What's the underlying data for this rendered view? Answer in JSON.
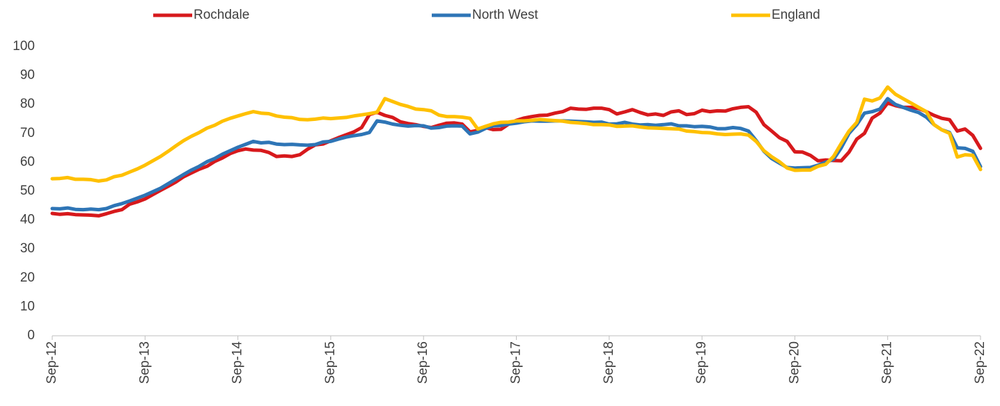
{
  "chart_data": {
    "type": "line",
    "categories": [
      "Sep-12",
      null,
      null,
      null,
      null,
      null,
      null,
      null,
      null,
      null,
      null,
      null,
      "Sep-13",
      null,
      null,
      null,
      null,
      null,
      null,
      null,
      null,
      null,
      null,
      null,
      "Sep-14",
      null,
      null,
      null,
      null,
      null,
      null,
      null,
      null,
      null,
      null,
      null,
      "Sep-15",
      null,
      null,
      null,
      null,
      null,
      null,
      null,
      null,
      null,
      null,
      null,
      "Sep-16",
      null,
      null,
      null,
      null,
      null,
      null,
      null,
      null,
      null,
      null,
      null,
      "Sep-17",
      null,
      null,
      null,
      null,
      null,
      null,
      null,
      null,
      null,
      null,
      null,
      "Sep-18",
      null,
      null,
      null,
      null,
      null,
      null,
      null,
      null,
      null,
      null,
      null,
      "Sep-19",
      null,
      null,
      null,
      null,
      null,
      null,
      null,
      null,
      null,
      null,
      null,
      "Sep-20",
      null,
      null,
      null,
      null,
      null,
      null,
      null,
      null,
      null,
      null,
      null,
      "Sep-21",
      null,
      null,
      null,
      null,
      null,
      null,
      null,
      null,
      null,
      null,
      null,
      "Sep-22"
    ],
    "series": [
      {
        "name": "Rochdale",
        "color": "#d7191c",
        "values": [
          42.3,
          42,
          42.2,
          41.9,
          41.8,
          41.7,
          41.5,
          42.2,
          43,
          43.6,
          45.5,
          46.3,
          47.3,
          48.8,
          50.3,
          51.7,
          53.2,
          55,
          56.3,
          57.6,
          58.6,
          60.3,
          61.5,
          63,
          64,
          64.6,
          64.2,
          64.1,
          63.4,
          62,
          62.2,
          62,
          62.6,
          64.5,
          66,
          66.3,
          67.4,
          68.5,
          69.5,
          70.5,
          72,
          76.5,
          77.3,
          76.2,
          75.5,
          74,
          73.4,
          73,
          72.4,
          72,
          72.8,
          73.5,
          73.6,
          73.2,
          70.5,
          71,
          72,
          71.3,
          71.4,
          73.2,
          74.5,
          75.3,
          75.8,
          76.2,
          76.3,
          77,
          77.5,
          78.7,
          78.4,
          78.3,
          78.7,
          78.7,
          78.2,
          76.7,
          77.4,
          78.2,
          77.2,
          76.4,
          76.7,
          76.2,
          77.4,
          77.8,
          76.5,
          76.8,
          78,
          77.5,
          77.8,
          77.7,
          78.5,
          79,
          79.2,
          77.3,
          73,
          70.8,
          68.5,
          67.2,
          63.6,
          63.5,
          62.4,
          60.5,
          60.8,
          60.6,
          60.5,
          63.5,
          68,
          70,
          75.3,
          77,
          80.5,
          79.6,
          79,
          79,
          78.6,
          77.5,
          76.2,
          75.2,
          74.7,
          70.8,
          71.5,
          69.3,
          64.8
        ]
      },
      {
        "name": "North West",
        "color": "#2e75b6",
        "values": [
          44,
          43.9,
          44.2,
          43.7,
          43.6,
          43.8,
          43.6,
          44,
          45,
          45.7,
          46.6,
          47.6,
          48.6,
          49.8,
          51,
          52.6,
          54.2,
          55.8,
          57.3,
          58.6,
          60.2,
          61.3,
          62.8,
          64,
          65.2,
          66.2,
          67.2,
          66.7,
          66.9,
          66.3,
          66.1,
          66.2,
          66,
          65.9,
          66.1,
          67,
          67.2,
          68,
          68.7,
          69.2,
          69.6,
          70.3,
          74.3,
          73.9,
          73.2,
          72.8,
          72.5,
          72.7,
          72.6,
          71.8,
          72,
          72.5,
          72.6,
          72.5,
          69.8,
          70.4,
          71.7,
          72.6,
          72.7,
          73.2,
          73.5,
          74,
          74.3,
          74.2,
          74.2,
          74.3,
          74.3,
          74.2,
          74.1,
          74,
          73.8,
          73.9,
          73.2,
          73.3,
          73.8,
          73.2,
          72.9,
          73,
          72.8,
          73,
          73.3,
          72.6,
          72.6,
          72.3,
          72.4,
          72.2,
          71.6,
          71.6,
          72,
          71.7,
          70.8,
          67.5,
          63.8,
          61.3,
          59.7,
          58.2,
          58,
          58.1,
          58.2,
          59,
          60,
          61,
          65,
          70,
          73,
          77,
          77.5,
          78.4,
          82,
          80,
          79,
          78,
          77.2,
          75.6,
          73,
          71.2,
          70.3,
          65,
          64.8,
          63.8,
          58.5
        ]
      },
      {
        "name": "England",
        "color": "#ffc000",
        "values": [
          54.3,
          54.4,
          54.7,
          54.1,
          54.1,
          54,
          53.5,
          53.9,
          55,
          55.5,
          56.6,
          57.7,
          59,
          60.5,
          62,
          63.8,
          65.7,
          67.5,
          69,
          70.3,
          71.8,
          72.8,
          74.2,
          75.2,
          76,
          76.8,
          77.5,
          77,
          76.8,
          76,
          75.6,
          75.4,
          74.8,
          74.7,
          74.9,
          75.3,
          75.1,
          75.3,
          75.5,
          76,
          76.4,
          76.8,
          77.3,
          82,
          81,
          80,
          79.3,
          78.4,
          78.2,
          77.8,
          76.3,
          75.8,
          75.8,
          75.6,
          75.2,
          71.5,
          72.4,
          73.3,
          73.8,
          73.9,
          74.3,
          74.3,
          74.5,
          74.8,
          74.6,
          74.4,
          74.2,
          73.8,
          73.6,
          73.4,
          73,
          73,
          72.9,
          72.4,
          72.5,
          72.6,
          72.2,
          71.9,
          71.8,
          71.7,
          71.6,
          71.5,
          70.8,
          70.6,
          70.3,
          70.2,
          69.8,
          69.6,
          69.7,
          69.8,
          69.4,
          67.2,
          64,
          61.9,
          60.2,
          58,
          57.2,
          57.3,
          57.3,
          58.6,
          59.3,
          62,
          66.5,
          70.8,
          73.8,
          81.8,
          81.2,
          82.2,
          86,
          83.5,
          82,
          80.5,
          79,
          77.5,
          73,
          71.2,
          70,
          61.8,
          62.6,
          62.4,
          57.5
        ]
      }
    ],
    "ylim": [
      0,
      100
    ],
    "yticks": [
      0,
      10,
      20,
      30,
      40,
      50,
      60,
      70,
      80,
      90,
      100
    ],
    "grid": false,
    "legend": "top"
  }
}
